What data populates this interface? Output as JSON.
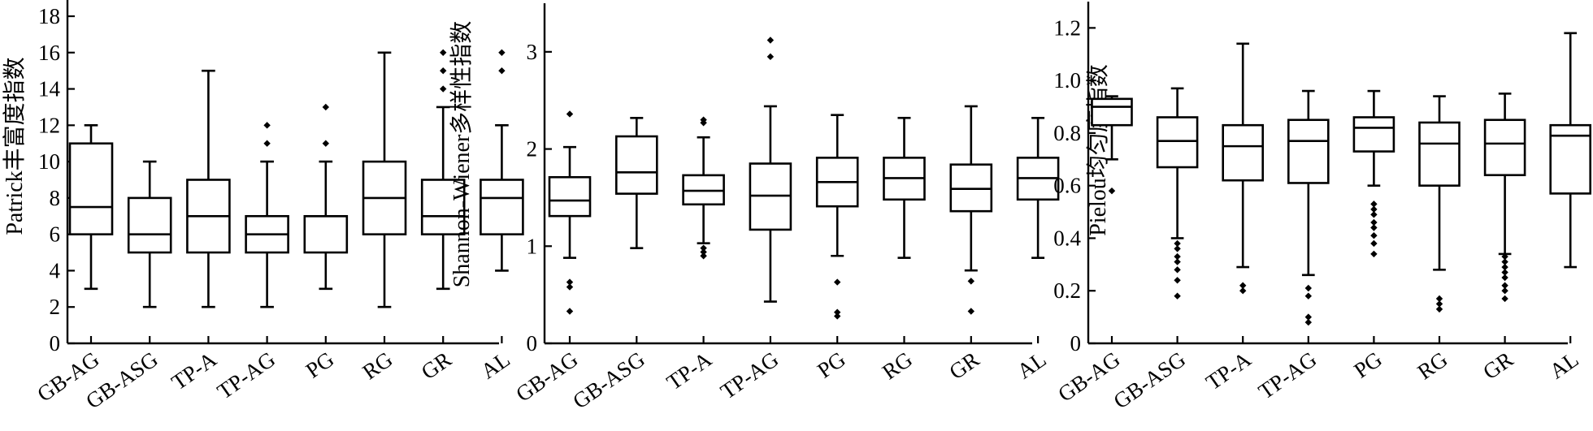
{
  "chart_data": [
    {
      "type": "box",
      "ylabel": "Patrick丰富度指数",
      "ylim": [
        0,
        18
      ],
      "yticks": [
        0,
        2,
        4,
        6,
        8,
        10,
        12,
        14,
        16,
        18
      ],
      "categories": [
        "GB-AG",
        "GB-ASG",
        "TP-A",
        "TP-AG",
        "PG",
        "RG",
        "GR",
        "AL"
      ],
      "boxes": [
        {
          "min": 3,
          "q1": 6,
          "median": 7.5,
          "q3": 11,
          "max": 12,
          "outliers": []
        },
        {
          "min": 2,
          "q1": 5,
          "median": 6,
          "q3": 8,
          "max": 10,
          "outliers": []
        },
        {
          "min": 2,
          "q1": 5,
          "median": 7,
          "q3": 9,
          "max": 15,
          "outliers": []
        },
        {
          "min": 2,
          "q1": 5,
          "median": 6,
          "q3": 7,
          "max": 10,
          "outliers": [
            11,
            12
          ]
        },
        {
          "min": 3,
          "q1": 5,
          "median": 7,
          "q3": 7,
          "max": 10,
          "outliers": [
            11,
            13
          ]
        },
        {
          "min": 2,
          "q1": 6,
          "median": 8,
          "q3": 10,
          "max": 16,
          "outliers": []
        },
        {
          "min": 3,
          "q1": 6,
          "median": 7,
          "q3": 9,
          "max": 13,
          "outliers": [
            14,
            15,
            16
          ]
        },
        {
          "min": 4,
          "q1": 6,
          "median": 8,
          "q3": 9,
          "max": 12,
          "outliers": [
            15,
            16
          ]
        }
      ]
    },
    {
      "type": "box",
      "ylabel": "Shannon-Wiener多样性指数",
      "ylim": [
        0,
        3.5
      ],
      "yticks": [
        0,
        1,
        2,
        3
      ],
      "categories": [
        "GB-AG",
        "GB-ASG",
        "TP-A",
        "TP-AG",
        "PG",
        "RG",
        "GR",
        "AL"
      ],
      "boxes": [
        {
          "min": 0.88,
          "q1": 1.31,
          "median": 1.47,
          "q3": 1.71,
          "max": 2.02,
          "outliers": [
            0.33,
            0.58,
            0.63,
            2.36
          ]
        },
        {
          "min": 0.98,
          "q1": 1.54,
          "median": 1.76,
          "q3": 2.13,
          "max": 2.32,
          "outliers": []
        },
        {
          "min": 1.03,
          "q1": 1.43,
          "median": 1.57,
          "q3": 1.73,
          "max": 2.12,
          "outliers": [
            0.9,
            0.94,
            0.98,
            2.27,
            2.3
          ]
        },
        {
          "min": 0.43,
          "q1": 1.17,
          "median": 1.52,
          "q3": 1.85,
          "max": 2.44,
          "outliers": [
            2.95,
            3.12
          ]
        },
        {
          "min": 0.9,
          "q1": 1.41,
          "median": 1.66,
          "q3": 1.91,
          "max": 2.35,
          "outliers": [
            0.28,
            0.32,
            0.63
          ]
        },
        {
          "min": 0.88,
          "q1": 1.48,
          "median": 1.7,
          "q3": 1.91,
          "max": 2.32,
          "outliers": []
        },
        {
          "min": 0.75,
          "q1": 1.36,
          "median": 1.59,
          "q3": 1.84,
          "max": 2.44,
          "outliers": [
            0.33,
            0.64
          ]
        },
        {
          "min": 0.88,
          "q1": 1.48,
          "median": 1.7,
          "q3": 1.91,
          "max": 2.32,
          "outliers": []
        }
      ]
    },
    {
      "type": "box",
      "ylabel": "Pielou均匀度指数",
      "ylim": [
        0,
        1.3
      ],
      "yticks": [
        0,
        0.2,
        0.4,
        0.6,
        0.8,
        1.0,
        1.2
      ],
      "ytick_labels": [
        "0",
        "0.2",
        "0.4",
        "0.6",
        "0.8",
        "1.0",
        "1.2"
      ],
      "categories": [
        "GB-AG",
        "GB-ASG",
        "TP-A",
        "TP-AG",
        "PG",
        "RG",
        "GR",
        "AL"
      ],
      "boxes": [
        {
          "min": 0.7,
          "q1": 0.83,
          "median": 0.9,
          "q3": 0.93,
          "max": 0.94,
          "outliers": [
            0.58
          ]
        },
        {
          "min": 0.4,
          "q1": 0.67,
          "median": 0.77,
          "q3": 0.86,
          "max": 0.97,
          "outliers": [
            0.18,
            0.24,
            0.28,
            0.31,
            0.33,
            0.36,
            0.38
          ]
        },
        {
          "min": 0.29,
          "q1": 0.62,
          "median": 0.75,
          "q3": 0.83,
          "max": 1.14,
          "outliers": [
            0.2,
            0.22
          ]
        },
        {
          "min": 0.26,
          "q1": 0.61,
          "median": 0.77,
          "q3": 0.85,
          "max": 0.96,
          "outliers": [
            0.08,
            0.1,
            0.18,
            0.21
          ]
        },
        {
          "min": 0.6,
          "q1": 0.73,
          "median": 0.82,
          "q3": 0.86,
          "max": 0.96,
          "outliers": [
            0.34,
            0.38,
            0.41,
            0.44,
            0.46,
            0.49,
            0.51,
            0.53
          ]
        },
        {
          "min": 0.28,
          "q1": 0.6,
          "median": 0.76,
          "q3": 0.84,
          "max": 0.94,
          "outliers": [
            0.13,
            0.15,
            0.17
          ]
        },
        {
          "min": 0.34,
          "q1": 0.64,
          "median": 0.76,
          "q3": 0.85,
          "max": 0.95,
          "outliers": [
            0.17,
            0.2,
            0.22,
            0.25,
            0.27,
            0.29,
            0.31,
            0.33
          ]
        },
        {
          "min": 0.29,
          "q1": 0.57,
          "median": 0.79,
          "q3": 0.83,
          "max": 1.18,
          "outliers": []
        }
      ]
    }
  ]
}
